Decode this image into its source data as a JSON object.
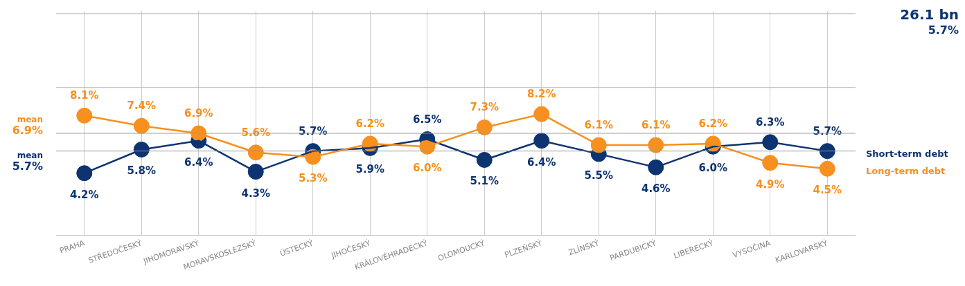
{
  "chart_data": {
    "type": "line",
    "categories": [
      "PRAHA",
      "STŘEDOČESKÝ",
      "JIHOMORAVSKÝ",
      "MORAVSKOSLEZSKÝ",
      "ÚSTECKÝ",
      "JIHOČESKÝ",
      "KRÁLOVÉHRADECKÝ",
      "OLOMOUCKÝ",
      "PLZEŇSKÝ",
      "ZLÍNSKÝ",
      "PARDUBICKÝ",
      "LIBERECKÝ",
      "VYSOČINA",
      "KARLOVARSKÝ"
    ],
    "series": [
      {
        "name": "Short-term debt",
        "color": "#0d3470",
        "values": [
          4.2,
          5.8,
          6.4,
          4.3,
          5.7,
          5.9,
          6.5,
          5.1,
          6.4,
          5.5,
          4.6,
          6.0,
          6.3,
          5.7
        ],
        "value_labels": [
          "4.2%",
          "5.8%",
          "6.4%",
          "4.3%",
          "5.7%",
          "5.9%",
          "6.5%",
          "5.1%",
          "6.4%",
          "5.5%",
          "4.6%",
          "6.0%",
          "6.3%",
          "5.7%"
        ]
      },
      {
        "name": "Long-term debt",
        "color": "#f7901e",
        "values": [
          8.1,
          7.4,
          6.9,
          5.6,
          5.3,
          6.2,
          6.0,
          7.3,
          8.2,
          6.1,
          6.1,
          6.2,
          4.9,
          4.5
        ],
        "value_labels": [
          "8.1%",
          "7.4%",
          "6.9%",
          "5.6%",
          "5.3%",
          "6.2%",
          "6.0%",
          "7.3%",
          "8.2%",
          "6.1%",
          "6.1%",
          "6.2%",
          "4.9%",
          "4.5%"
        ]
      }
    ],
    "ylim": [
      0,
      15.2
    ],
    "tick_labels": "x",
    "grid": "x",
    "marker": "circle",
    "line_style": "solid",
    "ref_lines": [
      {
        "axis": "y",
        "value": 10,
        "color": "#bbbbbb"
      },
      {
        "axis": "y",
        "value": 15,
        "color": "#bbbbbb"
      },
      {
        "axis": "y",
        "value": 6.9,
        "label": "mean 6.9%",
        "color": "#999999"
      },
      {
        "axis": "y",
        "value": 5.7,
        "label": "mean 5.7%",
        "color": "#999999"
      }
    ],
    "annotations": [
      "26.1 bn",
      "5.7%"
    ]
  }
}
